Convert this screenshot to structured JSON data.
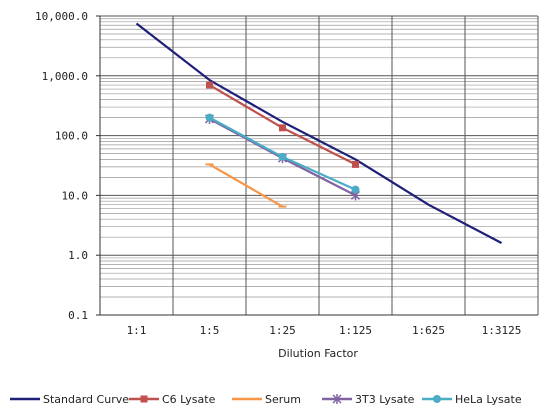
{
  "chart_data": {
    "type": "line",
    "title": "",
    "xlabel": "Dilution Factor",
    "ylabel": "",
    "y_scale": "log",
    "ylim": [
      0.1,
      10000
    ],
    "y_tick_labels": [
      "10,000.0",
      "1,000.0",
      "100.0",
      "10.0",
      "1.0",
      "0.1"
    ],
    "categories": [
      "1:1",
      "1:5",
      "1:25",
      "1:125",
      "1:625",
      "1:3125"
    ],
    "grid": true,
    "legend_position": "bottom",
    "series": [
      {
        "name": "Standard Curve",
        "color": "#1f1f7a",
        "marker": "none",
        "points": [
          [
            0,
            7500
          ],
          [
            1,
            850
          ],
          [
            2,
            170
          ],
          [
            3,
            40
          ],
          [
            4,
            7
          ],
          [
            5,
            1.6
          ]
        ]
      },
      {
        "name": "C6 Lysate",
        "color": "#c0504d",
        "marker": "square",
        "points": [
          [
            1,
            700
          ],
          [
            2,
            135
          ],
          [
            3,
            33
          ]
        ]
      },
      {
        "name": "Serum",
        "color": "#f79646",
        "marker": "dash",
        "points": [
          [
            1,
            33
          ],
          [
            2,
            6.5
          ]
        ]
      },
      {
        "name": "3T3 Lysate",
        "color": "#8064a2",
        "marker": "x",
        "points": [
          [
            1,
            190
          ],
          [
            2,
            42
          ],
          [
            3,
            10
          ]
        ]
      },
      {
        "name": "HeLa Lysate",
        "color": "#4bacc6",
        "marker": "circle",
        "points": [
          [
            1,
            200
          ],
          [
            2,
            44
          ],
          [
            3,
            12.5
          ]
        ]
      }
    ]
  }
}
